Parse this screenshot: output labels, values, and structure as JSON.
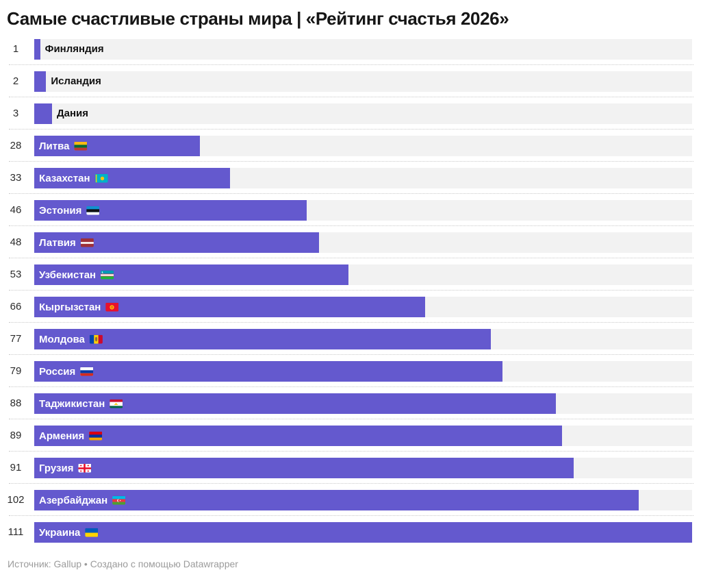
{
  "chart": {
    "title": "Самые счастливые страны мира | «Рейтинг счастья 2026»",
    "footer": "Источник: Gallup • Создано с помощью Datawrapper",
    "colors": {
      "bar": "#6459CE",
      "track": "#F2F2F2",
      "separator": "#C9C9C9",
      "label_inside": "#FFFFFF",
      "label_outside": "#111111",
      "rank_text": "#2B2B2B",
      "footer_text": "#9B9B9B"
    },
    "max_value": 111,
    "rows": [
      {
        "rank": "1",
        "country": "Финляндия",
        "flag": null,
        "label_inside": false
      },
      {
        "rank": "2",
        "country": "Исландия",
        "flag": null,
        "label_inside": false
      },
      {
        "rank": "3",
        "country": "Дания",
        "flag": null,
        "label_inside": false
      },
      {
        "rank": "28",
        "country": "Литва",
        "flag": "lt",
        "label_inside": true
      },
      {
        "rank": "33",
        "country": "Казахстан",
        "flag": "kz",
        "label_inside": true
      },
      {
        "rank": "46",
        "country": "Эстония",
        "flag": "ee",
        "label_inside": true
      },
      {
        "rank": "48",
        "country": "Латвия",
        "flag": "lv",
        "label_inside": true
      },
      {
        "rank": "53",
        "country": "Узбекистан",
        "flag": "uz",
        "label_inside": true
      },
      {
        "rank": "66",
        "country": "Кыргызстан",
        "flag": "kg",
        "label_inside": true
      },
      {
        "rank": "77",
        "country": "Молдова",
        "flag": "md",
        "label_inside": true
      },
      {
        "rank": "79",
        "country": "Россия",
        "flag": "ru",
        "label_inside": true
      },
      {
        "rank": "88",
        "country": "Таджикистан",
        "flag": "tj",
        "label_inside": true
      },
      {
        "rank": "89",
        "country": "Армения",
        "flag": "am",
        "label_inside": true
      },
      {
        "rank": "91",
        "country": "Грузия",
        "flag": "ge",
        "label_inside": true
      },
      {
        "rank": "102",
        "country": "Азербайджан",
        "flag": "az",
        "label_inside": true
      },
      {
        "rank": "111",
        "country": "Украина",
        "flag": "ua",
        "label_inside": true
      }
    ]
  },
  "chart_data": {
    "type": "bar",
    "orientation": "horizontal",
    "title": "Самые счастливые страны мира | «Рейтинг счастья 2026»",
    "categories": [
      "Финляндия",
      "Исландия",
      "Дания",
      "Литва",
      "Казахстан",
      "Эстония",
      "Латвия",
      "Узбекистан",
      "Кыргызстан",
      "Молдова",
      "Россия",
      "Таджикистан",
      "Армения",
      "Грузия",
      "Азербайджан",
      "Украина"
    ],
    "values": [
      1,
      2,
      3,
      28,
      33,
      46,
      48,
      53,
      66,
      77,
      79,
      88,
      89,
      91,
      102,
      111
    ],
    "xlabel": "",
    "ylabel": "",
    "xlim": [
      0,
      111
    ],
    "grid": false,
    "legend": "none",
    "source": "Gallup",
    "made_with": "Datawrapper"
  }
}
